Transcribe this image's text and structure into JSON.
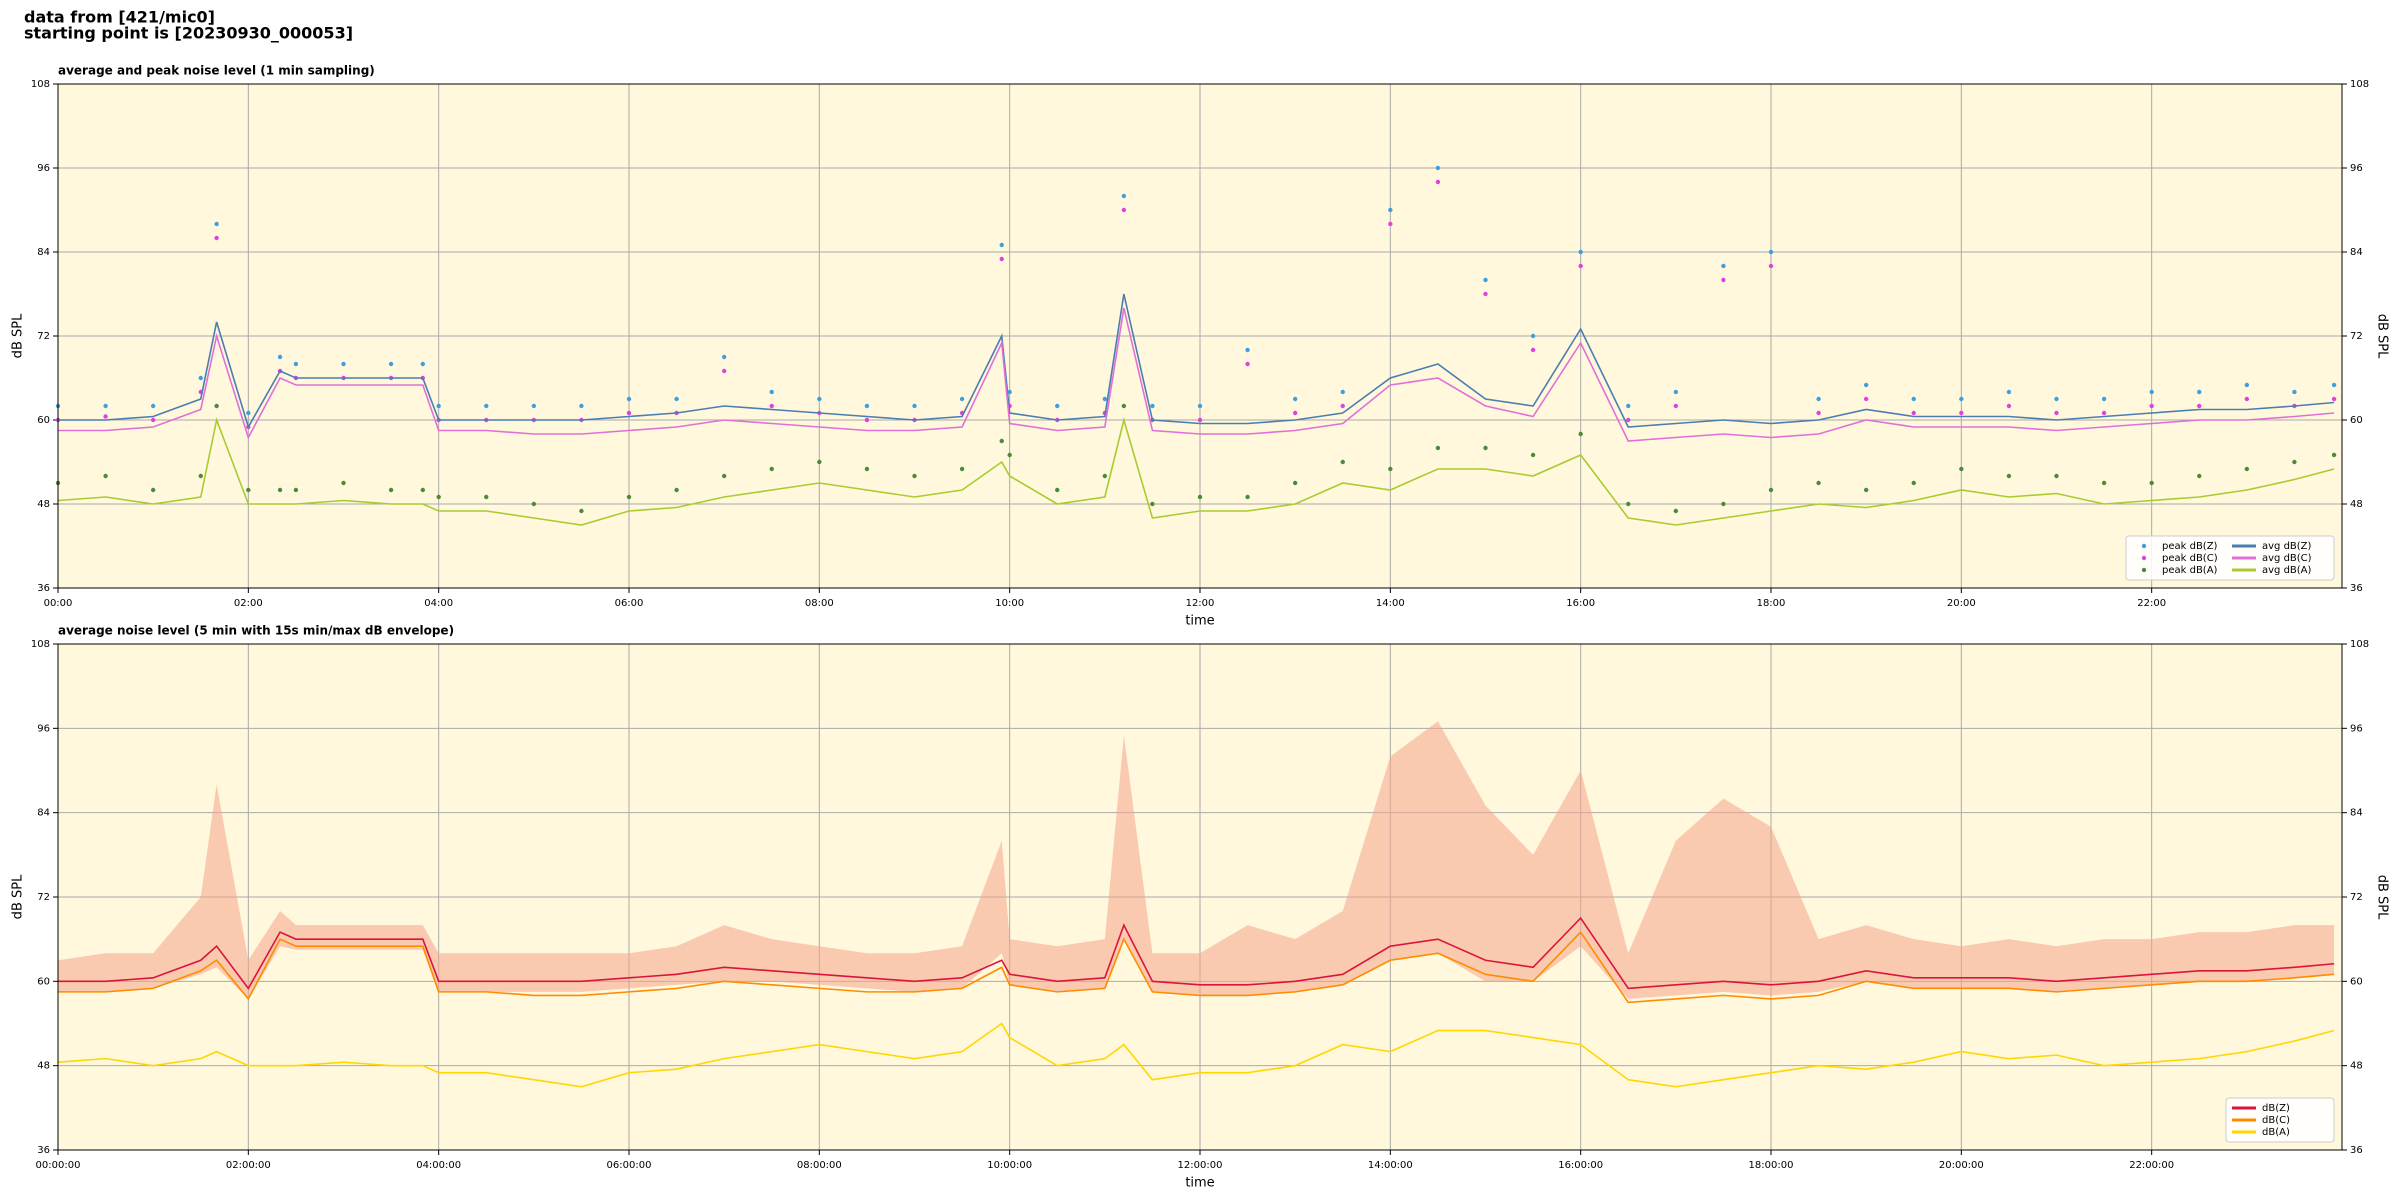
{
  "header": {
    "lines": [
      "data from [421/mic0]",
      "starting point is [20230930_000053]"
    ]
  },
  "chart_data": [
    {
      "type": "line",
      "title": "average and peak noise level (1 min sampling)",
      "x_label": "time",
      "y_label": "dB SPL",
      "x": [
        "00:00",
        "00:30",
        "01:00",
        "01:30",
        "01:40",
        "02:00",
        "02:20",
        "02:30",
        "03:00",
        "03:30",
        "03:50",
        "04:00",
        "04:30",
        "05:00",
        "05:30",
        "06:00",
        "06:30",
        "07:00",
        "07:30",
        "08:00",
        "08:30",
        "09:00",
        "09:30",
        "09:55",
        "10:00",
        "10:30",
        "11:00",
        "11:12",
        "11:30",
        "12:00",
        "12:30",
        "13:00",
        "13:30",
        "14:00",
        "14:30",
        "15:00",
        "15:30",
        "16:00",
        "16:30",
        "17:00",
        "17:30",
        "18:00",
        "18:30",
        "19:00",
        "19:30",
        "20:00",
        "20:30",
        "21:00",
        "21:30",
        "22:00",
        "22:30",
        "23:00",
        "23:30",
        "23:55"
      ],
      "xlim": [
        "00:00",
        "24:00"
      ],
      "xticks": [
        "00:00",
        "02:00",
        "04:00",
        "06:00",
        "08:00",
        "10:00",
        "12:00",
        "14:00",
        "16:00",
        "18:00",
        "20:00",
        "22:00"
      ],
      "ylim": [
        36,
        108
      ],
      "yticks": [
        36,
        48,
        60,
        72,
        84,
        96,
        108
      ],
      "grid": true,
      "background": "#fff8dc",
      "legend": "lower right",
      "series": [
        {
          "name": "peak dB(Z)",
          "style": "dots",
          "color": "#3aa0e0",
          "values": [
            62,
            62,
            62,
            66,
            88,
            61,
            69,
            68,
            68,
            68,
            68,
            62,
            62,
            62,
            62,
            63,
            63,
            69,
            64,
            63,
            62,
            62,
            63,
            85,
            64,
            62,
            63,
            92,
            62,
            62,
            70,
            63,
            64,
            90,
            96,
            80,
            72,
            84,
            62,
            64,
            82,
            84,
            63,
            65,
            63,
            63,
            64,
            63,
            63,
            64,
            64,
            65,
            64,
            65
          ]
        },
        {
          "name": "peak dB(C)",
          "style": "dots",
          "color": "#e040e0",
          "values": [
            60,
            60.5,
            60,
            64,
            86,
            59,
            67,
            66,
            66,
            66,
            66,
            60,
            60,
            60,
            60,
            61,
            61,
            67,
            62,
            61,
            60,
            60,
            61,
            83,
            62,
            60,
            61,
            90,
            60,
            60,
            68,
            61,
            62,
            88,
            94,
            78,
            70,
            82,
            60,
            62,
            80,
            82,
            61,
            63,
            61,
            61,
            62,
            61,
            61,
            62,
            62,
            63,
            62,
            63
          ]
        },
        {
          "name": "peak dB(A)",
          "style": "dots",
          "color": "#4a8a3a",
          "values": [
            51,
            52,
            50,
            52,
            62,
            50,
            50,
            50,
            51,
            50,
            50,
            49,
            49,
            48,
            47,
            49,
            50,
            52,
            53,
            54,
            53,
            52,
            53,
            57,
            55,
            50,
            52,
            62,
            48,
            49,
            49,
            51,
            54,
            53,
            56,
            56,
            55,
            58,
            48,
            47,
            48,
            50,
            51,
            50,
            51,
            53,
            52,
            52,
            51,
            51,
            52,
            53,
            54,
            55
          ]
        },
        {
          "name": "avg dB(Z)",
          "style": "line",
          "color": "#4a7eb0",
          "values": [
            60,
            60,
            60.5,
            63,
            74,
            59,
            67,
            66,
            66,
            66,
            66,
            60,
            60,
            60,
            60,
            60.5,
            61,
            62,
            61.5,
            61,
            60.5,
            60,
            60.5,
            72,
            61,
            60,
            60.5,
            78,
            60,
            59.5,
            59.5,
            60,
            61,
            66,
            68,
            63,
            62,
            73,
            59,
            59.5,
            60,
            59.5,
            60,
            61.5,
            60.5,
            60.5,
            60.5,
            60,
            60.5,
            61,
            61.5,
            61.5,
            62,
            62.5
          ]
        },
        {
          "name": "avg dB(C)",
          "style": "line",
          "color": "#e070d8",
          "values": [
            58.5,
            58.5,
            59,
            61.5,
            72,
            57.5,
            66,
            65,
            65,
            65,
            65,
            58.5,
            58.5,
            58,
            58,
            58.5,
            59,
            60,
            59.5,
            59,
            58.5,
            58.5,
            59,
            71,
            59.5,
            58.5,
            59,
            76,
            58.5,
            58,
            58,
            58.5,
            59.5,
            65,
            66,
            62,
            60.5,
            71,
            57,
            57.5,
            58,
            57.5,
            58,
            60,
            59,
            59,
            59,
            58.5,
            59,
            59.5,
            60,
            60,
            60.5,
            61
          ]
        },
        {
          "name": "avg dB(A)",
          "style": "line",
          "color": "#a8cc30",
          "values": [
            48.5,
            49,
            48,
            49,
            60,
            48,
            48,
            48,
            48.5,
            48,
            48,
            47,
            47,
            46,
            45,
            47,
            47.5,
            49,
            50,
            51,
            50,
            49,
            50,
            54,
            52,
            48,
            49,
            60,
            46,
            47,
            47,
            48,
            51,
            50,
            53,
            53,
            52,
            55,
            46,
            45,
            46,
            47,
            48,
            47.5,
            48.5,
            50,
            49,
            49.5,
            48,
            48.5,
            49,
            50,
            51.5,
            53
          ]
        }
      ]
    },
    {
      "type": "line",
      "title": "average noise level (5 min with 15s min/max dB envelope)",
      "x_label": "time",
      "y_label": "dB SPL",
      "x": [
        "00:00:00",
        "00:30:00",
        "01:00:00",
        "01:30:00",
        "01:40:00",
        "02:00:00",
        "02:20:00",
        "02:30:00",
        "03:00:00",
        "03:30:00",
        "03:50:00",
        "04:00:00",
        "04:30:00",
        "05:00:00",
        "05:30:00",
        "06:00:00",
        "06:30:00",
        "07:00:00",
        "07:30:00",
        "08:00:00",
        "08:30:00",
        "09:00:00",
        "09:30:00",
        "09:55:00",
        "10:00:00",
        "10:30:00",
        "11:00:00",
        "11:12:00",
        "11:30:00",
        "12:00:00",
        "12:30:00",
        "13:00:00",
        "13:30:00",
        "14:00:00",
        "14:30:00",
        "15:00:00",
        "15:30:00",
        "16:00:00",
        "16:30:00",
        "17:00:00",
        "17:30:00",
        "18:00:00",
        "18:30:00",
        "19:00:00",
        "19:30:00",
        "20:00:00",
        "20:30:00",
        "21:00:00",
        "21:30:00",
        "22:00:00",
        "22:30:00",
        "23:00:00",
        "23:30:00",
        "23:55:00"
      ],
      "xlim": [
        "00:00:00",
        "24:00:00"
      ],
      "xticks": [
        "00:00:00",
        "02:00:00",
        "04:00:00",
        "06:00:00",
        "08:00:00",
        "10:00:00",
        "12:00:00",
        "14:00:00",
        "16:00:00",
        "18:00:00",
        "20:00:00",
        "22:00:00"
      ],
      "ylim": [
        36,
        108
      ],
      "yticks": [
        36,
        48,
        60,
        72,
        84,
        96,
        108
      ],
      "grid": true,
      "background": "#fff8dc",
      "legend": "lower right",
      "envelope": {
        "color": "#f4a48a",
        "lower": [
          58.5,
          58.5,
          59,
          61,
          62,
          57.5,
          65,
          64.5,
          64.5,
          64.5,
          64.5,
          58.5,
          58.5,
          58.5,
          58.5,
          59,
          59.5,
          60,
          60,
          59.5,
          59,
          58.5,
          59,
          64,
          59.5,
          58.5,
          59,
          66,
          58.5,
          58,
          58,
          58.5,
          59.5,
          63,
          64,
          60,
          60,
          65,
          57.5,
          58,
          58.5,
          58,
          58.5,
          60,
          59,
          59,
          59,
          58.5,
          59,
          59.5,
          60,
          60,
          60.5,
          61
        ],
        "upper": [
          63,
          64,
          64,
          72,
          88,
          63,
          70,
          68,
          68,
          68,
          68,
          64,
          64,
          64,
          64,
          64,
          65,
          68,
          66,
          65,
          64,
          64,
          65,
          80,
          66,
          65,
          66,
          95,
          64,
          64,
          68,
          66,
          70,
          92,
          97,
          85,
          78,
          90,
          64,
          80,
          86,
          82,
          66,
          68,
          66,
          65,
          66,
          65,
          66,
          66,
          67,
          67,
          68,
          68
        ]
      },
      "series": [
        {
          "name": "dB(Z)",
          "style": "line",
          "color": "#dc143c",
          "values": [
            60,
            60,
            60.5,
            63,
            65,
            59,
            67,
            66,
            66,
            66,
            66,
            60,
            60,
            60,
            60,
            60.5,
            61,
            62,
            61.5,
            61,
            60.5,
            60,
            60.5,
            63,
            61,
            60,
            60.5,
            68,
            60,
            59.5,
            59.5,
            60,
            61,
            65,
            66,
            63,
            62,
            69,
            59,
            59.5,
            60,
            59.5,
            60,
            61.5,
            60.5,
            60.5,
            60.5,
            60,
            60.5,
            61,
            61.5,
            61.5,
            62,
            62.5
          ]
        },
        {
          "name": "dB(C)",
          "style": "line",
          "color": "#ff8c00",
          "values": [
            58.5,
            58.5,
            59,
            61.5,
            63,
            57.5,
            66,
            65,
            65,
            65,
            65,
            58.5,
            58.5,
            58,
            58,
            58.5,
            59,
            60,
            59.5,
            59,
            58.5,
            58.5,
            59,
            62,
            59.5,
            58.5,
            59,
            66,
            58.5,
            58,
            58,
            58.5,
            59.5,
            63,
            64,
            61,
            60,
            67,
            57,
            57.5,
            58,
            57.5,
            58,
            60,
            59,
            59,
            59,
            58.5,
            59,
            59.5,
            60,
            60,
            60.5,
            61
          ]
        },
        {
          "name": "dB(A)",
          "style": "line",
          "color": "#ffd700",
          "values": [
            48.5,
            49,
            48,
            49,
            50,
            48,
            48,
            48,
            48.5,
            48,
            48,
            47,
            47,
            46,
            45,
            47,
            47.5,
            49,
            50,
            51,
            50,
            49,
            50,
            54,
            52,
            48,
            49,
            51,
            46,
            47,
            47,
            48,
            51,
            50,
            53,
            53,
            52,
            51,
            46,
            45,
            46,
            47,
            48,
            47.5,
            48.5,
            50,
            49,
            49.5,
            48,
            48.5,
            49,
            50,
            51.5,
            53
          ]
        }
      ]
    }
  ]
}
